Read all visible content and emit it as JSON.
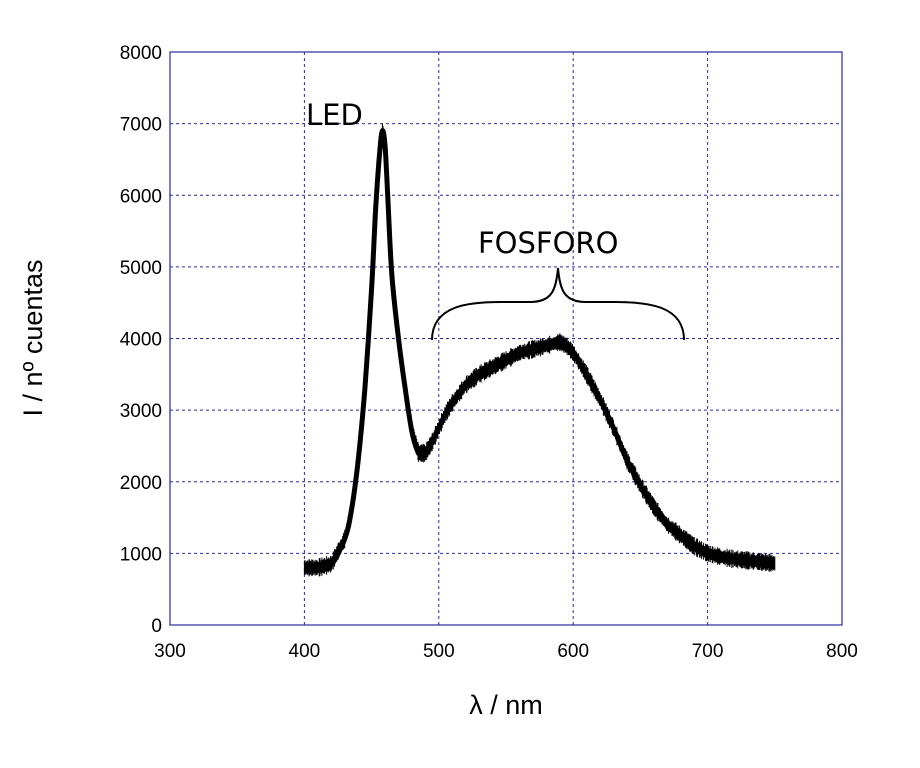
{
  "chart_data": {
    "type": "line",
    "xlabel": "λ / nm",
    "ylabel": "I / nº cuentas",
    "xlim": [
      300,
      800
    ],
    "ylim": [
      0,
      8000
    ],
    "xticks": [
      300,
      400,
      500,
      600,
      700,
      800
    ],
    "yticks": [
      0,
      1000,
      2000,
      3000,
      4000,
      5000,
      6000,
      7000,
      8000
    ],
    "grid": true,
    "annotations": [
      "LED",
      "FOSFORO"
    ],
    "series": [
      {
        "x": [
          400,
          410,
          420,
          430,
          435,
          440,
          445,
          450,
          453,
          456,
          458,
          460,
          462,
          465,
          470,
          475,
          480,
          485,
          490,
          495,
          500,
          505,
          510,
          520,
          530,
          540,
          550,
          560,
          570,
          580,
          590,
          595,
          600,
          610,
          620,
          630,
          640,
          650,
          660,
          670,
          680,
          690,
          700,
          710,
          720,
          730,
          740,
          750
        ],
        "y": [
          800,
          800,
          850,
          1200,
          1600,
          2300,
          3300,
          4700,
          5800,
          6600,
          6900,
          6700,
          6000,
          4900,
          4000,
          3300,
          2700,
          2400,
          2400,
          2550,
          2750,
          2950,
          3100,
          3350,
          3500,
          3600,
          3700,
          3800,
          3850,
          3900,
          3950,
          3900,
          3800,
          3500,
          3150,
          2750,
          2300,
          1950,
          1650,
          1400,
          1250,
          1100,
          1000,
          950,
          920,
          900,
          880,
          860
        ]
      }
    ]
  }
}
